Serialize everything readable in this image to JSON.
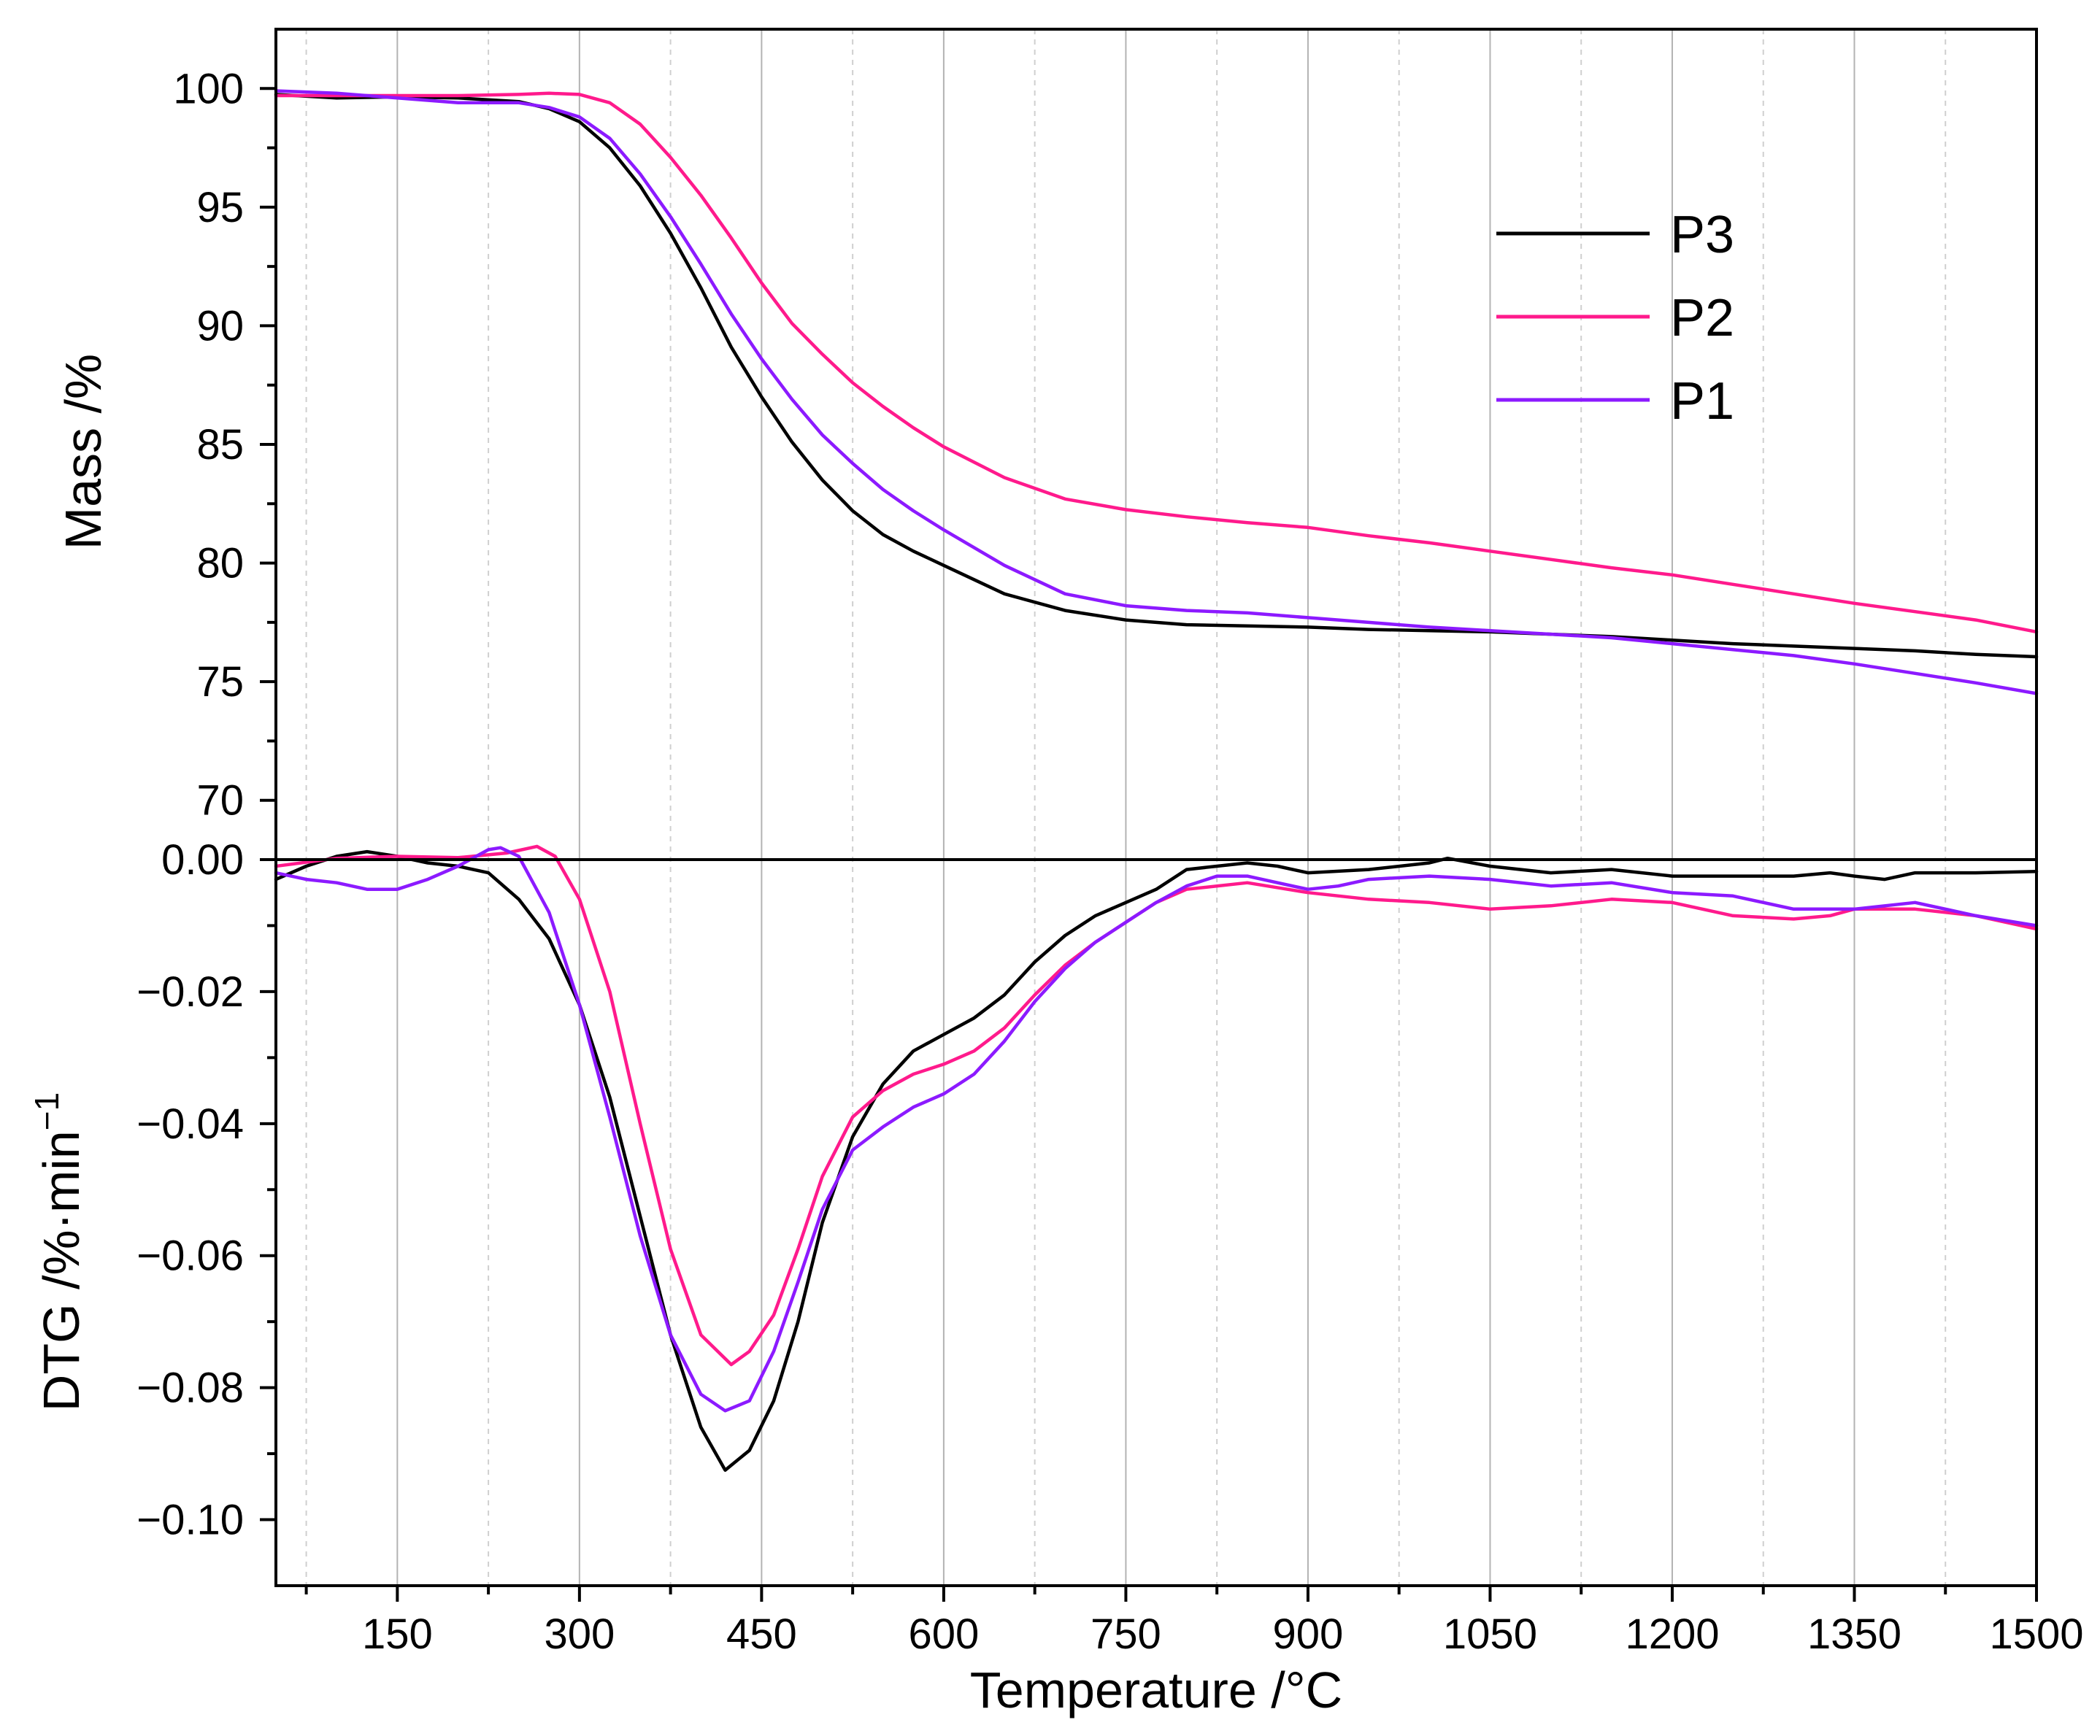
{
  "chart_data": {
    "type": "line",
    "title": "",
    "x": {
      "label": "Temperature /°C",
      "range": [
        50,
        1500
      ],
      "ticks": [
        150,
        300,
        450,
        600,
        750,
        900,
        1050,
        1200,
        1350,
        1500
      ],
      "minor_ticks": [
        75,
        225,
        375,
        525,
        675,
        825,
        975,
        1125,
        1275,
        1425
      ]
    },
    "panels": [
      {
        "id": "mass",
        "ylabel": "Mass /%",
        "ylim": [
          67.5,
          102.5
        ],
        "yticks": [
          70,
          75,
          80,
          85,
          90,
          95,
          100
        ],
        "series": [
          {
            "name": "P3",
            "color": "#000000",
            "x": [
              50,
              100,
              150,
              200,
              250,
              275,
              300,
              325,
              350,
              375,
              400,
              425,
              450,
              475,
              500,
              525,
              550,
              575,
              600,
              650,
              700,
              750,
              800,
              850,
              900,
              950,
              1000,
              1050,
              1100,
              1150,
              1200,
              1250,
              1300,
              1350,
              1400,
              1450,
              1500
            ],
            "y": [
              99.75,
              99.6,
              99.65,
              99.6,
              99.45,
              99.15,
              98.6,
              97.5,
              95.9,
              93.9,
              91.6,
              89.1,
              87.0,
              85.1,
              83.5,
              82.2,
              81.2,
              80.5,
              79.9,
              78.7,
              78.0,
              77.6,
              77.4,
              77.35,
              77.3,
              77.2,
              77.15,
              77.1,
              77.0,
              76.9,
              76.75,
              76.6,
              76.5,
              76.4,
              76.3,
              76.15,
              76.05
            ]
          },
          {
            "name": "P2",
            "color": "#ff1a8c",
            "x": [
              50,
              100,
              150,
              200,
              250,
              275,
              300,
              325,
              350,
              375,
              400,
              425,
              450,
              475,
              500,
              525,
              550,
              575,
              600,
              650,
              700,
              750,
              800,
              850,
              900,
              950,
              1000,
              1050,
              1100,
              1150,
              1200,
              1250,
              1300,
              1350,
              1400,
              1450,
              1500
            ],
            "y": [
              99.7,
              99.7,
              99.7,
              99.7,
              99.75,
              99.8,
              99.75,
              99.4,
              98.5,
              97.1,
              95.5,
              93.7,
              91.8,
              90.1,
              88.8,
              87.6,
              86.6,
              85.7,
              84.9,
              83.6,
              82.7,
              82.25,
              81.95,
              81.7,
              81.5,
              81.15,
              80.85,
              80.5,
              80.15,
              79.8,
              79.5,
              79.1,
              78.7,
              78.3,
              77.95,
              77.6,
              77.1
            ]
          },
          {
            "name": "P1",
            "color": "#8c1aff",
            "x": [
              50,
              100,
              150,
              200,
              250,
              275,
              300,
              325,
              350,
              375,
              400,
              425,
              450,
              475,
              500,
              525,
              550,
              575,
              600,
              650,
              700,
              750,
              800,
              850,
              900,
              950,
              1000,
              1050,
              1100,
              1150,
              1200,
              1250,
              1300,
              1350,
              1400,
              1450,
              1500
            ],
            "y": [
              99.9,
              99.8,
              99.6,
              99.4,
              99.4,
              99.2,
              98.8,
              97.9,
              96.4,
              94.6,
              92.6,
              90.5,
              88.6,
              86.9,
              85.4,
              84.2,
              83.1,
              82.2,
              81.4,
              79.9,
              78.7,
              78.2,
              78.0,
              77.9,
              77.7,
              77.5,
              77.3,
              77.15,
              77.0,
              76.85,
              76.6,
              76.35,
              76.1,
              75.75,
              75.35,
              74.95,
              74.5
            ]
          }
        ]
      },
      {
        "id": "dtg",
        "ylabel": "DTG /%·min",
        "ylabel_sup": "−1",
        "ylim": [
          -0.11,
          0.0
        ],
        "yticks": [
          0.0,
          -0.02,
          -0.04,
          -0.06,
          -0.08,
          -0.1
        ],
        "ytick_labels": [
          "0.00",
          "−0.02",
          "−0.04",
          "−0.06",
          "−0.08",
          "−0.10"
        ],
        "series": [
          {
            "name": "P3",
            "color": "#000000",
            "x": [
              50,
              75,
              100,
              125,
              150,
              175,
              200,
              225,
              250,
              275,
              300,
              325,
              350,
              375,
              400,
              420,
              440,
              460,
              480,
              500,
              525,
              550,
              575,
              600,
              625,
              650,
              675,
              700,
              725,
              750,
              775,
              800,
              825,
              850,
              875,
              900,
              950,
              1000,
              1015,
              1050,
              1100,
              1150,
              1200,
              1250,
              1300,
              1330,
              1350,
              1375,
              1400,
              1450,
              1500
            ],
            "y": [
              -0.003,
              -0.001,
              0.0005,
              0.0012,
              0.0005,
              -0.0005,
              -0.001,
              -0.002,
              -0.006,
              -0.012,
              -0.022,
              -0.036,
              -0.054,
              -0.072,
              -0.086,
              -0.0925,
              -0.0895,
              -0.082,
              -0.07,
              -0.055,
              -0.042,
              -0.034,
              -0.029,
              -0.0265,
              -0.024,
              -0.0205,
              -0.0155,
              -0.0115,
              -0.0085,
              -0.0065,
              -0.0045,
              -0.0015,
              -0.001,
              -0.0005,
              -0.001,
              -0.002,
              -0.0015,
              -0.0005,
              0.0002,
              -0.001,
              -0.002,
              -0.0015,
              -0.0025,
              -0.0025,
              -0.0025,
              -0.002,
              -0.0025,
              -0.003,
              -0.002,
              -0.002,
              -0.0018
            ]
          },
          {
            "name": "P2",
            "color": "#ff1a8c",
            "x": [
              50,
              100,
              150,
              200,
              240,
              265,
              280,
              300,
              325,
              350,
              375,
              400,
              425,
              440,
              460,
              480,
              500,
              525,
              550,
              575,
              600,
              625,
              650,
              675,
              700,
              725,
              750,
              775,
              800,
              850,
              900,
              950,
              1000,
              1050,
              1100,
              1150,
              1200,
              1250,
              1300,
              1330,
              1350,
              1400,
              1450,
              1500
            ],
            "y": [
              -0.001,
              0.0002,
              0.0005,
              0.0003,
              0.001,
              0.002,
              0.0005,
              -0.006,
              -0.02,
              -0.04,
              -0.059,
              -0.072,
              -0.0765,
              -0.0745,
              -0.069,
              -0.059,
              -0.048,
              -0.039,
              -0.035,
              -0.0325,
              -0.031,
              -0.029,
              -0.0255,
              -0.0205,
              -0.016,
              -0.0125,
              -0.0095,
              -0.0065,
              -0.0045,
              -0.0035,
              -0.005,
              -0.006,
              -0.0065,
              -0.0075,
              -0.007,
              -0.006,
              -0.0065,
              -0.0085,
              -0.009,
              -0.0085,
              -0.0075,
              -0.0075,
              -0.0085,
              -0.0105
            ]
          },
          {
            "name": "P1",
            "color": "#8c1aff",
            "x": [
              50,
              75,
              100,
              125,
              150,
              175,
              200,
              225,
              235,
              250,
              275,
              300,
              325,
              350,
              375,
              400,
              420,
              440,
              460,
              480,
              500,
              525,
              550,
              575,
              600,
              625,
              650,
              675,
              700,
              725,
              750,
              775,
              800,
              825,
              850,
              875,
              900,
              925,
              950,
              1000,
              1050,
              1100,
              1150,
              1200,
              1250,
              1300,
              1350,
              1400,
              1450,
              1500
            ],
            "y": [
              -0.002,
              -0.003,
              -0.0035,
              -0.0045,
              -0.0045,
              -0.003,
              -0.001,
              0.0015,
              0.0018,
              0.0005,
              -0.008,
              -0.022,
              -0.039,
              -0.057,
              -0.072,
              -0.081,
              -0.0835,
              -0.082,
              -0.0745,
              -0.064,
              -0.053,
              -0.044,
              -0.0405,
              -0.0375,
              -0.0355,
              -0.0325,
              -0.0275,
              -0.0215,
              -0.0165,
              -0.0125,
              -0.0095,
              -0.0065,
              -0.004,
              -0.0025,
              -0.0025,
              -0.0035,
              -0.0045,
              -0.004,
              -0.003,
              -0.0025,
              -0.003,
              -0.004,
              -0.0035,
              -0.005,
              -0.0055,
              -0.0075,
              -0.0075,
              -0.0065,
              -0.0085,
              -0.01
            ]
          }
        ]
      }
    ],
    "legend": {
      "position": "top-right of mass panel",
      "entries": [
        "P3",
        "P2",
        "P1"
      ]
    }
  }
}
